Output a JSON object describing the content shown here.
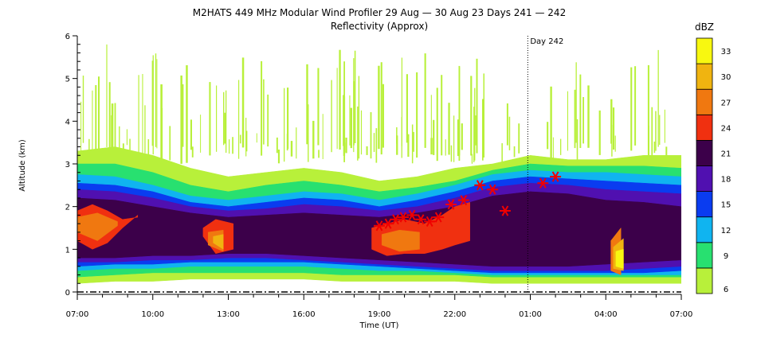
{
  "chart_data": {
    "type": "heatmap",
    "title": "M2HATS 449 MHz Modular Wind Profiler  29 Aug — 30 Aug 23 Days 241 — 242",
    "subtitle": "Reflectivity (Approx)",
    "xlabel": "Time (UT)",
    "ylabel": "Altitude (km)",
    "x_ticks": [
      "07:00",
      "10:00",
      "13:00",
      "16:00",
      "19:00",
      "22:00",
      "01:00",
      "04:00",
      "07:00"
    ],
    "x_range_hours": [
      0,
      24
    ],
    "y_ticks": [
      "0",
      "1",
      "2",
      "3",
      "4",
      "5",
      "6"
    ],
    "ylim": [
      0,
      6
    ],
    "colorbar": {
      "label": "dBZ",
      "ticks": [
        "6",
        "9",
        "12",
        "15",
        "18",
        "21",
        "24",
        "27",
        "30",
        "33"
      ],
      "range": [
        6,
        36
      ],
      "colors": [
        "#b8f03a",
        "#28e070",
        "#10b4f0",
        "#0a3cf0",
        "#5010b0",
        "#3c004a",
        "#f03010",
        "#f07810",
        "#f0b410",
        "#f8f810"
      ]
    },
    "day_marker": {
      "label": "Day 242",
      "x_hours": 17.9
    },
    "markers": {
      "symbol": "asterisk",
      "color": "#f00000",
      "points": [
        {
          "x": 12.0,
          "y": 1.55
        },
        {
          "x": 12.35,
          "y": 1.6
        },
        {
          "x": 12.65,
          "y": 1.7
        },
        {
          "x": 12.95,
          "y": 1.75
        },
        {
          "x": 13.3,
          "y": 1.8
        },
        {
          "x": 13.65,
          "y": 1.7
        },
        {
          "x": 14.0,
          "y": 1.65
        },
        {
          "x": 14.35,
          "y": 1.75
        },
        {
          "x": 14.85,
          "y": 2.05
        },
        {
          "x": 15.35,
          "y": 2.15
        },
        {
          "x": 16.0,
          "y": 2.5
        },
        {
          "x": 16.5,
          "y": 2.4
        },
        {
          "x": 17.0,
          "y": 1.9
        },
        {
          "x": 18.5,
          "y": 2.55
        },
        {
          "x": 19.0,
          "y": 2.7
        }
      ]
    },
    "layers": [
      {
        "dbz": 6,
        "pts": [
          [
            0,
            0.2,
            3.3
          ],
          [
            1.5,
            0.25,
            3.4
          ],
          [
            3,
            0.25,
            3.2
          ],
          [
            4.5,
            0.3,
            2.9
          ],
          [
            6,
            0.3,
            2.7
          ],
          [
            7.5,
            0.3,
            2.8
          ],
          [
            9,
            0.3,
            2.9
          ],
          [
            10.5,
            0.25,
            2.8
          ],
          [
            12,
            0.25,
            2.6
          ],
          [
            13.5,
            0.25,
            2.7
          ],
          [
            15,
            0.25,
            2.9
          ],
          [
            16.5,
            0.2,
            3.0
          ],
          [
            18,
            0.2,
            3.2
          ],
          [
            19.5,
            0.2,
            3.1
          ],
          [
            21,
            0.2,
            3.1
          ],
          [
            22.5,
            0.2,
            3.2
          ],
          [
            24,
            0.2,
            3.2
          ]
        ]
      },
      {
        "dbz": 9,
        "pts": [
          [
            0,
            0.35,
            3.0
          ],
          [
            1.5,
            0.4,
            3.0
          ],
          [
            3,
            0.45,
            2.8
          ],
          [
            4.5,
            0.45,
            2.5
          ],
          [
            6,
            0.45,
            2.35
          ],
          [
            7.5,
            0.45,
            2.5
          ],
          [
            9,
            0.45,
            2.6
          ],
          [
            10.5,
            0.4,
            2.5
          ],
          [
            12,
            0.4,
            2.35
          ],
          [
            13.5,
            0.4,
            2.45
          ],
          [
            15,
            0.4,
            2.6
          ],
          [
            16.5,
            0.35,
            2.85
          ],
          [
            18,
            0.35,
            3.0
          ],
          [
            19.5,
            0.35,
            2.95
          ],
          [
            21,
            0.35,
            2.95
          ],
          [
            22.5,
            0.35,
            2.95
          ],
          [
            24,
            0.35,
            2.9
          ]
        ]
      },
      {
        "dbz": 12,
        "pts": [
          [
            0,
            0.5,
            2.75
          ],
          [
            1.5,
            0.55,
            2.7
          ],
          [
            3,
            0.55,
            2.5
          ],
          [
            4.5,
            0.6,
            2.25
          ],
          [
            6,
            0.6,
            2.15
          ],
          [
            7.5,
            0.6,
            2.25
          ],
          [
            9,
            0.6,
            2.35
          ],
          [
            10.5,
            0.55,
            2.3
          ],
          [
            12,
            0.5,
            2.15
          ],
          [
            13.5,
            0.5,
            2.3
          ],
          [
            15,
            0.45,
            2.5
          ],
          [
            16.5,
            0.4,
            2.75
          ],
          [
            18,
            0.4,
            2.85
          ],
          [
            19.5,
            0.4,
            2.8
          ],
          [
            21,
            0.4,
            2.8
          ],
          [
            22.5,
            0.4,
            2.75
          ],
          [
            24,
            0.4,
            2.7
          ]
        ]
      },
      {
        "dbz": 15,
        "pts": [
          [
            0,
            0.6,
            2.55
          ],
          [
            1.5,
            0.65,
            2.5
          ],
          [
            3,
            0.65,
            2.35
          ],
          [
            4.5,
            0.7,
            2.1
          ],
          [
            6,
            0.7,
            2.0
          ],
          [
            7.5,
            0.7,
            2.1
          ],
          [
            9,
            0.7,
            2.2
          ],
          [
            10.5,
            0.65,
            2.15
          ],
          [
            12,
            0.6,
            2.0
          ],
          [
            13.5,
            0.55,
            2.15
          ],
          [
            15,
            0.5,
            2.35
          ],
          [
            16.5,
            0.45,
            2.6
          ],
          [
            18,
            0.45,
            2.7
          ],
          [
            19.5,
            0.45,
            2.65
          ],
          [
            21,
            0.45,
            2.6
          ],
          [
            22.5,
            0.45,
            2.55
          ],
          [
            24,
            0.5,
            2.5
          ]
        ]
      },
      {
        "dbz": 18,
        "pts": [
          [
            0,
            0.7,
            2.4
          ],
          [
            1.5,
            0.7,
            2.35
          ],
          [
            3,
            0.75,
            2.2
          ],
          [
            4.5,
            0.75,
            2.0
          ],
          [
            6,
            0.8,
            1.9
          ],
          [
            7.5,
            0.8,
            1.95
          ],
          [
            9,
            0.75,
            2.05
          ],
          [
            10.5,
            0.7,
            2.0
          ],
          [
            12,
            0.65,
            1.9
          ],
          [
            13.5,
            0.6,
            2.0
          ],
          [
            15,
            0.55,
            2.2
          ],
          [
            16.5,
            0.5,
            2.45
          ],
          [
            18,
            0.5,
            2.55
          ],
          [
            19.5,
            0.5,
            2.5
          ],
          [
            21,
            0.5,
            2.4
          ],
          [
            22.5,
            0.55,
            2.35
          ],
          [
            24,
            0.6,
            2.3
          ]
        ]
      },
      {
        "dbz": 21,
        "pts": [
          [
            0,
            0.8,
            2.2
          ],
          [
            1.5,
            0.8,
            2.15
          ],
          [
            3,
            0.85,
            2.0
          ],
          [
            4.5,
            0.85,
            1.85
          ],
          [
            6,
            0.9,
            1.75
          ],
          [
            7.5,
            0.9,
            1.8
          ],
          [
            9,
            0.85,
            1.85
          ],
          [
            10.5,
            0.8,
            1.8
          ],
          [
            12,
            0.75,
            1.75
          ],
          [
            13.5,
            0.7,
            1.85
          ],
          [
            15,
            0.65,
            2.0
          ],
          [
            16.5,
            0.6,
            2.25
          ],
          [
            18,
            0.6,
            2.35
          ],
          [
            19.5,
            0.6,
            2.3
          ],
          [
            21,
            0.65,
            2.15
          ],
          [
            22.5,
            0.7,
            2.1
          ],
          [
            24,
            0.75,
            2.0
          ]
        ]
      },
      {
        "dbz": 24,
        "pts": [
          [
            0,
            1.2,
            1.9
          ],
          [
            0.6,
            1.0,
            2.05
          ],
          [
            1.2,
            1.15,
            1.9
          ],
          [
            1.8,
            1.5,
            1.7
          ],
          [
            2.4,
            1.8,
            1.75
          ],
          [
            3,
            99,
            99
          ],
          [
            5,
            1.3,
            1.5
          ],
          [
            5.5,
            0.9,
            1.7
          ],
          [
            6.2,
            1.0,
            1.6
          ],
          [
            6.8,
            99,
            99
          ],
          [
            11.7,
            1.0,
            1.5
          ],
          [
            12.3,
            0.85,
            1.6
          ],
          [
            13,
            0.9,
            1.7
          ],
          [
            13.8,
            0.9,
            1.6
          ],
          [
            14.5,
            1.0,
            1.8
          ],
          [
            15,
            1.1,
            2.0
          ],
          [
            15.6,
            1.2,
            2.1
          ],
          [
            16.2,
            99,
            99
          ]
        ]
      },
      {
        "dbz": 27,
        "pts": [
          [
            0,
            1.4,
            1.75
          ],
          [
            0.8,
            1.2,
            1.85
          ],
          [
            1.6,
            1.55,
            1.65
          ],
          [
            2.2,
            99,
            99
          ],
          [
            5.2,
            1.1,
            1.4
          ],
          [
            5.8,
            0.95,
            1.45
          ],
          [
            6.4,
            99,
            99
          ],
          [
            12.1,
            1.1,
            1.35
          ],
          [
            12.8,
            0.95,
            1.45
          ],
          [
            13.6,
            1.0,
            1.4
          ],
          [
            14.4,
            99,
            99
          ],
          [
            21.2,
            0.5,
            1.2
          ],
          [
            21.6,
            0.4,
            1.5
          ],
          [
            22.0,
            99,
            99
          ]
        ]
      },
      {
        "dbz": 30,
        "pts": [
          [
            5.4,
            1.15,
            1.3
          ],
          [
            5.8,
            1.0,
            1.35
          ],
          [
            6.1,
            99,
            99
          ],
          [
            12.6,
            1.05,
            1.2
          ],
          [
            13.2,
            99,
            99
          ],
          [
            21.3,
            0.55,
            1.05
          ],
          [
            21.7,
            0.5,
            1.25
          ],
          [
            22.0,
            99,
            99
          ]
        ]
      },
      {
        "dbz": 33,
        "pts": [
          [
            21.4,
            0.6,
            0.95
          ],
          [
            21.7,
            0.55,
            1.0
          ],
          [
            21.9,
            99,
            99
          ]
        ]
      }
    ]
  }
}
